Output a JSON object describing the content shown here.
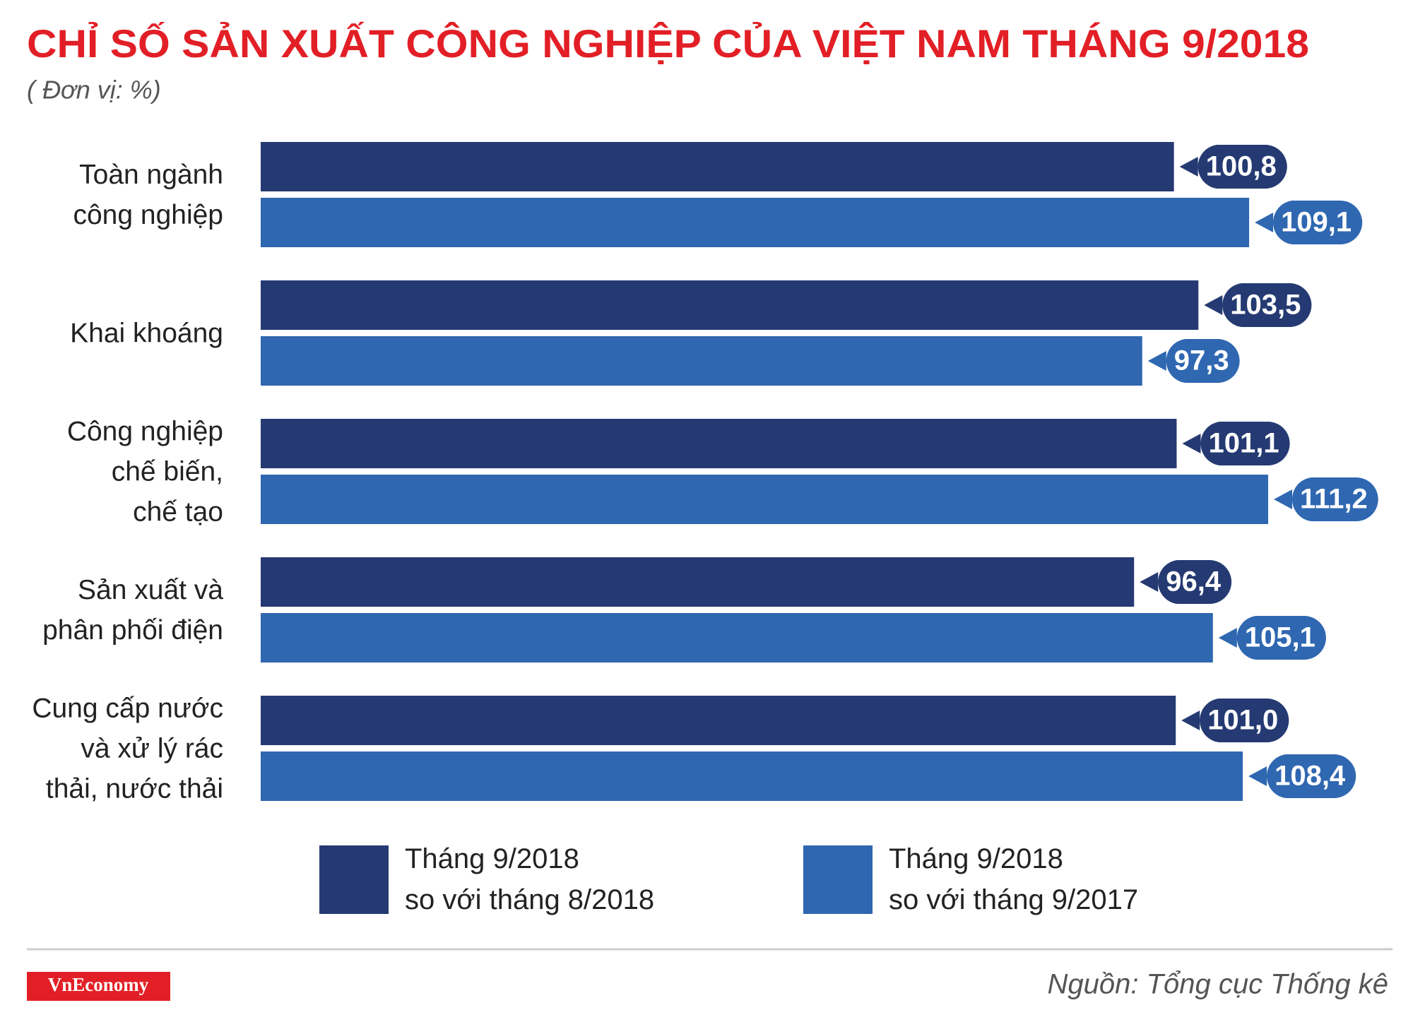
{
  "chart_data": {
    "type": "bar",
    "orientation": "horizontal",
    "title": "CHỈ SỐ SẢN XUẤT CÔNG NGHIỆP CỦA VIỆT NAM THÁNG 9/2018",
    "subtitle": "( Đơn vị: %)",
    "categories": [
      "Toàn ngành\ncông nghiệp",
      "Khai khoáng",
      "Công nghiệp\nchế biến,\nchế tạo",
      "Sản xuất và\nphân phối điện",
      "Cung cấp nước\nvà xử lý rác\nthải, nước thải"
    ],
    "series": [
      {
        "name": "Tháng 9/2018\nso với tháng 8/2018",
        "color": "#253a72",
        "values": [
          100.8,
          103.5,
          101.1,
          96.4,
          101.0
        ],
        "value_labels": [
          "100,8",
          "103,5",
          "101,1",
          "96,4",
          "101,0"
        ]
      },
      {
        "name": "Tháng 9/2018\nso với tháng 9/2017",
        "color": "#2f67b1",
        "values": [
          109.1,
          97.3,
          111.2,
          105.1,
          108.4
        ],
        "value_labels": [
          "109,1",
          "97,3",
          "111,2",
          "105,1",
          "108,4"
        ]
      }
    ],
    "source": "Nguồn: Tổng cục Thống kê",
    "logo": "VnEconomy"
  }
}
